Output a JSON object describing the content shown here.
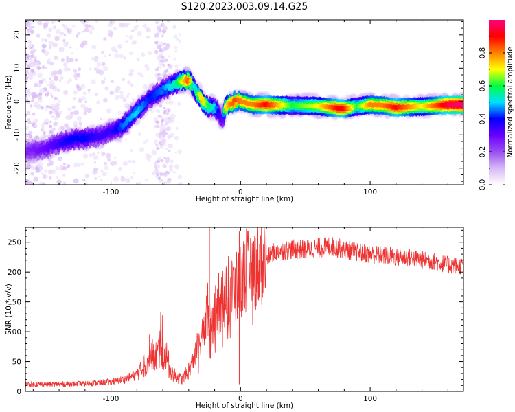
{
  "figure": {
    "title": "S120.2023.003.09.14.G25"
  },
  "chart_data": [
    {
      "type": "heatmap",
      "panel": "top",
      "xlabel": "Height of straight line (km)",
      "ylabel": "Frequency (Hz)",
      "xlim": [
        -166,
        172
      ],
      "ylim": [
        -25,
        24.5
      ],
      "xticks": [
        -100,
        0,
        100
      ],
      "yticks": [
        -20,
        -10,
        0,
        10,
        20
      ],
      "colorbar": {
        "label": "Normalized spectral amplitude",
        "range": [
          0,
          1
        ],
        "ticks": [
          0.0,
          0.2,
          0.4,
          0.6,
          0.8
        ],
        "tick_labels": [
          "0.0",
          "0.2",
          "0.4",
          "0.6",
          "0.8"
        ],
        "colormap": [
          "#ffffff",
          "#d7b8f5",
          "#9a4ef0",
          "#6a00ff",
          "#0000ff",
          "#00e0ff",
          "#00ff40",
          "#ffff00",
          "#ff8000",
          "#ff0000",
          "#ff0080"
        ]
      },
      "ridge": {
        "x": [
          -166,
          -150,
          -140,
          -130,
          -120,
          -110,
          -100,
          -90,
          -80,
          -70,
          -60,
          -50,
          -45,
          -40,
          -36,
          -30,
          -25,
          -20,
          -16,
          -14,
          -12,
          -8,
          -4,
          0,
          10,
          20,
          40,
          60,
          75,
          80,
          90,
          100,
          110,
          120,
          140,
          160,
          172
        ],
        "y": [
          -15,
          -14,
          -12.5,
          -11.5,
          -11,
          -10.5,
          -9,
          -7,
          -3,
          1,
          3.5,
          5.5,
          6.2,
          6.5,
          4,
          0.5,
          -1.5,
          -2,
          -4,
          -6,
          -2,
          -0.5,
          0,
          0,
          -1,
          -1,
          -1.2,
          -1.4,
          -2,
          -2.2,
          -1.5,
          -1,
          -1.2,
          -1.8,
          -1.5,
          -1,
          -1
        ],
        "amplitude": [
          0.25,
          0.3,
          0.35,
          0.4,
          0.4,
          0.35,
          0.35,
          0.45,
          0.5,
          0.4,
          0.45,
          0.55,
          0.7,
          0.85,
          0.5,
          0.75,
          0.6,
          0.5,
          0.35,
          0.3,
          0.7,
          0.8,
          0.85,
          0.8,
          0.8,
          0.9,
          0.6,
          0.7,
          0.9,
          0.9,
          0.6,
          0.8,
          0.8,
          0.9,
          0.7,
          0.95,
          1.0
        ]
      }
    },
    {
      "type": "line",
      "panel": "bottom",
      "xlabel": "Height of straight line (km)",
      "ylabel": "SNR (10 * v/v)",
      "xlim": [
        -166,
        172
      ],
      "ylim": [
        0,
        275
      ],
      "xticks": [
        -100,
        0,
        100
      ],
      "yticks": [
        0,
        50,
        100,
        150,
        200,
        250
      ],
      "color": "#ee3333",
      "series": [
        {
          "x": [
            -166,
            -140,
            -120,
            -100,
            -90,
            -80,
            -75,
            -70,
            -65,
            -62,
            -58,
            -55,
            -50,
            -45,
            -40,
            -35,
            -30,
            -27,
            -25,
            -23,
            -20,
            -15,
            -10,
            -5,
            -2,
            0,
            5,
            10,
            15,
            20,
            25,
            30,
            40,
            50,
            60,
            70,
            80,
            90,
            100,
            110,
            120,
            130,
            140,
            150,
            160,
            172
          ],
          "values": [
            12,
            12,
            13,
            16,
            20,
            28,
            40,
            50,
            60,
            70,
            55,
            35,
            25,
            20,
            35,
            60,
            90,
            120,
            140,
            110,
            130,
            150,
            160,
            170,
            175,
            190,
            200,
            205,
            215,
            222,
            232,
            236,
            238,
            238,
            240,
            243,
            238,
            234,
            230,
            228,
            225,
            224,
            220,
            218,
            212,
            210
          ]
        }
      ],
      "spikes": [
        {
          "x": -24,
          "y": 275
        },
        {
          "x": -1,
          "y": 268
        },
        {
          "x": -1,
          "y": 12
        }
      ]
    }
  ]
}
